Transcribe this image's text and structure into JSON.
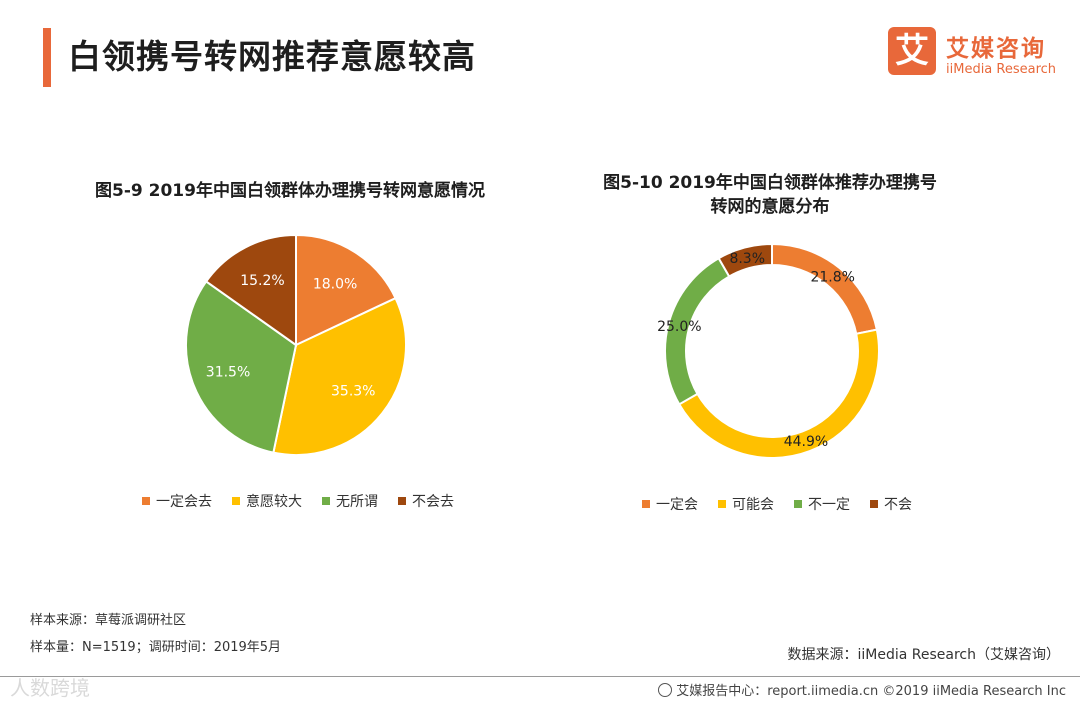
{
  "page": {
    "title": "白领携号转网推荐意愿较高"
  },
  "logo": {
    "glyph": "艾",
    "name_cn": "艾媒咨询",
    "name_en": "iiMedia Research"
  },
  "chart_data": [
    {
      "type": "pie",
      "title": "图5-9 2019年中国白领群体办理携号转网意愿情况",
      "categories": [
        "一定会去",
        "意愿较大",
        "无所谓",
        "不会去"
      ],
      "values": [
        18.0,
        35.3,
        31.5,
        15.2
      ],
      "labels": [
        "18.0%",
        "35.3%",
        "31.5%",
        "15.2%"
      ],
      "colors": [
        "#ed7d31",
        "#ffc000",
        "#70ad47",
        "#9e480e"
      ],
      "legend": "bottom"
    },
    {
      "type": "donut",
      "title_line1": "图5-10 2019年中国白领群体推荐办理携号",
      "title_line2": "转网的意愿分布",
      "categories": [
        "一定会",
        "可能会",
        "不一定",
        "不会"
      ],
      "values": [
        21.8,
        44.9,
        25.0,
        8.3
      ],
      "labels": [
        "21.8%",
        "44.9%",
        "25.0%",
        "8.3%"
      ],
      "colors": [
        "#ed7d31",
        "#ffc000",
        "#70ad47",
        "#9e480e"
      ],
      "legend": "bottom"
    }
  ],
  "notes": {
    "source": "样本来源：草莓派调研社区",
    "sample": "样本量：N=1519；调研时间：2019年5月"
  },
  "data_source": "数据来源：iiMedia Research（艾媒咨询）",
  "footer": {
    "text": "艾媒报告中心：report.iimedia.cn  ©2019  iiMedia Research Inc"
  },
  "watermark": "人数跨境"
}
